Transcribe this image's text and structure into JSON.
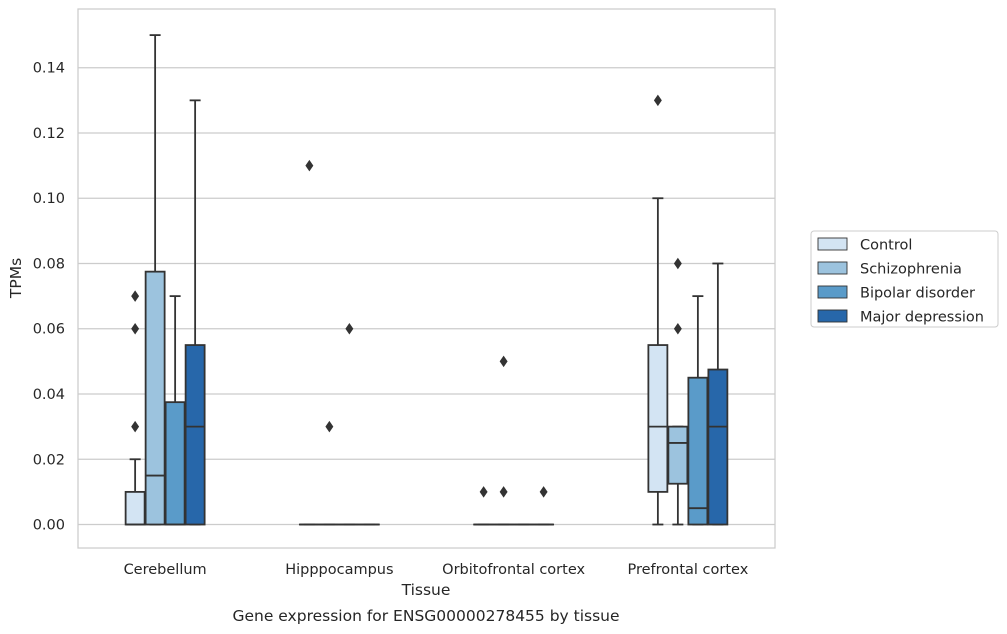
{
  "chart_data": {
    "type": "boxplot",
    "title": "",
    "xlabel": "Tissue",
    "ylabel": "TPMs",
    "caption": "Gene expression for ENSG00000278455 by tissue",
    "ylim": [
      -0.0072,
      0.158
    ],
    "yticks": [
      "0.00",
      "0.02",
      "0.04",
      "0.06",
      "0.08",
      "0.10",
      "0.12",
      "0.14"
    ],
    "grid": "horizontal",
    "legend_position": "right",
    "categories": [
      "Cerebellum",
      "Hipppocampus",
      "Orbitofrontal cortex",
      "Prefrontal cortex"
    ],
    "colors": {
      "Control": "#d3e4f3",
      "Schizophrenia": "#9cc3de",
      "Bipolar disorder": "#5a9bc9",
      "Major depression": "#2767aa",
      "edge": "#333333",
      "grid": "#cccccc",
      "frame": "#cccccc"
    },
    "series": [
      {
        "name": "Control",
        "boxes": [
          {
            "q1": 0,
            "median": 0,
            "q3": 0.01,
            "whislo": 0,
            "whishi": 0.02,
            "fliers": [
              0.03,
              0.06,
              0.07
            ]
          },
          {
            "q1": 0,
            "median": 0,
            "q3": 0,
            "whislo": 0,
            "whishi": 0,
            "fliers": [
              0.11
            ]
          },
          {
            "q1": 0,
            "median": 0,
            "q3": 0,
            "whislo": 0,
            "whishi": 0,
            "fliers": [
              0.01
            ]
          },
          {
            "q1": 0.01,
            "median": 0.03,
            "q3": 0.055,
            "whislo": 0,
            "whishi": 0.1,
            "fliers": [
              0.13
            ]
          }
        ]
      },
      {
        "name": "Schizophrenia",
        "boxes": [
          {
            "q1": 0,
            "median": 0.015,
            "q3": 0.0775,
            "whislo": 0,
            "whishi": 0.15,
            "fliers": []
          },
          {
            "q1": 0,
            "median": 0,
            "q3": 0,
            "whislo": 0,
            "whishi": 0,
            "fliers": [
              0.03
            ]
          },
          {
            "q1": 0,
            "median": 0,
            "q3": 0,
            "whislo": 0,
            "whishi": 0,
            "fliers": [
              0.01,
              0.05
            ]
          },
          {
            "q1": 0.0125,
            "median": 0.025,
            "q3": 0.03,
            "whislo": 0,
            "whishi": 0.03,
            "fliers": [
              0.06,
              0.08
            ]
          }
        ]
      },
      {
        "name": "Bipolar disorder",
        "boxes": [
          {
            "q1": 0,
            "median": 0,
            "q3": 0.0375,
            "whislo": 0,
            "whishi": 0.07,
            "fliers": []
          },
          {
            "q1": 0,
            "median": 0,
            "q3": 0,
            "whislo": 0,
            "whishi": 0,
            "fliers": [
              0.06
            ]
          },
          {
            "q1": 0,
            "median": 0,
            "q3": 0,
            "whislo": 0,
            "whishi": 0,
            "fliers": []
          },
          {
            "q1": 0,
            "median": 0.005,
            "q3": 0.045,
            "whislo": 0,
            "whishi": 0.07,
            "fliers": []
          }
        ]
      },
      {
        "name": "Major depression",
        "boxes": [
          {
            "q1": 0,
            "median": 0.03,
            "q3": 0.055,
            "whislo": 0,
            "whishi": 0.13,
            "fliers": []
          },
          {
            "q1": 0,
            "median": 0,
            "q3": 0,
            "whislo": 0,
            "whishi": 0,
            "fliers": []
          },
          {
            "q1": 0,
            "median": 0,
            "q3": 0,
            "whislo": 0,
            "whishi": 0,
            "fliers": [
              0.01
            ]
          },
          {
            "q1": 0,
            "median": 0.03,
            "q3": 0.0475,
            "whislo": 0,
            "whishi": 0.08,
            "fliers": []
          }
        ]
      }
    ]
  }
}
